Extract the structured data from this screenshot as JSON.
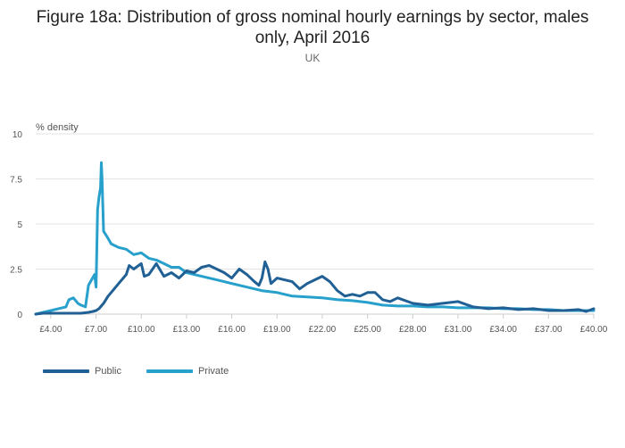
{
  "header": {
    "title": "Figure 18a: Distribution of gross nominal hourly earnings by sector, males only, April 2016",
    "subtitle": "UK"
  },
  "colors": {
    "public": "#206095",
    "private": "#27a0cc",
    "grid": "#e3e3e3",
    "text": "#555555"
  },
  "chart_data": {
    "type": "line",
    "title": "Figure 18a: Distribution of gross nominal hourly earnings by sector, males only, April 2016",
    "subtitle": "UK",
    "xlabel": "",
    "ylabel": "% density",
    "xlim": [
      3.0,
      40.0
    ],
    "ylim": [
      0,
      10
    ],
    "yticks": [
      0,
      2.5,
      5,
      7.5,
      10
    ],
    "ytick_labels": [
      "0",
      "2.5",
      "5",
      "7.5",
      "10"
    ],
    "xticks": [
      4,
      7,
      10,
      13,
      16,
      19,
      22,
      25,
      28,
      31,
      34,
      37,
      40
    ],
    "xtick_labels": [
      "£4.00",
      "£7.00",
      "£10.00",
      "£13.00",
      "£16.00",
      "£19.00",
      "£22.00",
      "£25.00",
      "£28.00",
      "£31.00",
      "£34.00",
      "£37.00",
      "£40.00"
    ],
    "legend_position": "bottom-left",
    "series": [
      {
        "name": "Public",
        "color": "#206095",
        "x": [
          3.0,
          3.5,
          4.0,
          4.5,
          5.0,
          5.5,
          6.0,
          6.5,
          6.8,
          7.0,
          7.2,
          7.5,
          7.8,
          8.0,
          8.5,
          9.0,
          9.2,
          9.5,
          10.0,
          10.2,
          10.5,
          11.0,
          11.5,
          12.0,
          12.5,
          13.0,
          13.5,
          14.0,
          14.5,
          15.0,
          15.5,
          16.0,
          16.5,
          17.0,
          17.5,
          17.8,
          18.0,
          18.2,
          18.4,
          18.6,
          19.0,
          19.5,
          20.0,
          20.5,
          21.0,
          21.5,
          22.0,
          22.5,
          23.0,
          23.5,
          24.0,
          24.5,
          25.0,
          25.5,
          26.0,
          26.5,
          27.0,
          28.0,
          29.0,
          30.0,
          31.0,
          32.0,
          33.0,
          34.0,
          35.0,
          36.0,
          37.0,
          38.0,
          39.0,
          39.5,
          40.0
        ],
        "values": [
          0.0,
          0.05,
          0.05,
          0.05,
          0.05,
          0.05,
          0.05,
          0.1,
          0.15,
          0.2,
          0.3,
          0.6,
          1.0,
          1.2,
          1.7,
          2.2,
          2.7,
          2.5,
          2.8,
          2.1,
          2.2,
          2.8,
          2.1,
          2.3,
          2.0,
          2.4,
          2.3,
          2.6,
          2.7,
          2.5,
          2.3,
          2.0,
          2.5,
          2.2,
          1.8,
          1.6,
          2.0,
          2.9,
          2.5,
          1.7,
          2.0,
          1.9,
          1.8,
          1.4,
          1.7,
          1.9,
          2.1,
          1.8,
          1.3,
          1.0,
          1.1,
          1.0,
          1.2,
          1.2,
          0.8,
          0.7,
          0.9,
          0.6,
          0.5,
          0.6,
          0.7,
          0.4,
          0.3,
          0.35,
          0.25,
          0.3,
          0.2,
          0.2,
          0.25,
          0.15,
          0.3
        ]
      },
      {
        "name": "Private",
        "color": "#27a0cc",
        "x": [
          3.0,
          3.5,
          4.0,
          4.5,
          5.0,
          5.2,
          5.5,
          5.8,
          6.0,
          6.3,
          6.5,
          6.7,
          6.9,
          7.0,
          7.1,
          7.2,
          7.3,
          7.35,
          7.4,
          7.5,
          7.8,
          8.0,
          8.5,
          9.0,
          9.5,
          10.0,
          10.5,
          11.0,
          11.5,
          12.0,
          12.5,
          13.0,
          13.5,
          14.0,
          14.5,
          15.0,
          15.5,
          16.0,
          16.5,
          17.0,
          17.5,
          18.0,
          19.0,
          20.0,
          21.0,
          22.0,
          23.0,
          24.0,
          25.0,
          26.0,
          27.0,
          28.0,
          29.0,
          30.0,
          31.0,
          32.0,
          33.0,
          34.0,
          35.0,
          36.0,
          37.0,
          38.0,
          39.0,
          40.0
        ],
        "values": [
          0.0,
          0.1,
          0.2,
          0.3,
          0.4,
          0.8,
          0.9,
          0.6,
          0.5,
          0.4,
          1.6,
          1.9,
          2.2,
          1.5,
          5.8,
          6.5,
          7.0,
          8.4,
          7.5,
          4.6,
          4.2,
          3.9,
          3.7,
          3.6,
          3.3,
          3.4,
          3.1,
          3.0,
          2.8,
          2.6,
          2.6,
          2.3,
          2.2,
          2.1,
          2.0,
          1.9,
          1.8,
          1.7,
          1.6,
          1.5,
          1.4,
          1.3,
          1.2,
          1.0,
          0.95,
          0.9,
          0.8,
          0.75,
          0.65,
          0.5,
          0.45,
          0.45,
          0.4,
          0.4,
          0.35,
          0.35,
          0.35,
          0.3,
          0.3,
          0.25,
          0.25,
          0.2,
          0.2,
          0.2
        ]
      }
    ]
  }
}
